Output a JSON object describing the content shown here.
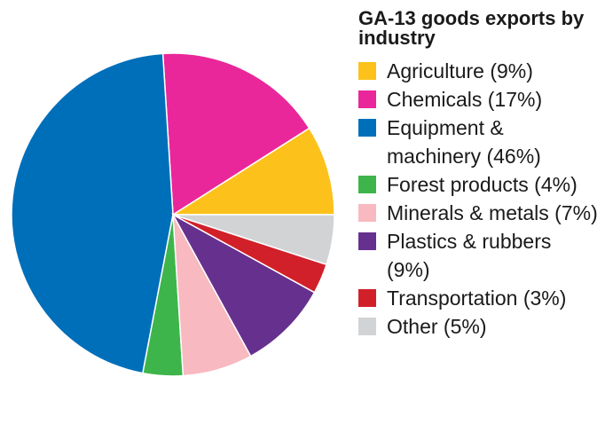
{
  "chart_data": {
    "type": "pie",
    "title": "GA-13 goods exports by industry",
    "slices": [
      {
        "label": "Agriculture (9%)",
        "value": 9,
        "color": "#FCC21B"
      },
      {
        "label": "Chemicals (17%)",
        "value": 17,
        "color": "#E9279A"
      },
      {
        "label": "Equipment & machinery (46%)",
        "value": 46,
        "color": "#006FBA"
      },
      {
        "label": "Forest products (4%)",
        "value": 4,
        "color": "#3DB54A"
      },
      {
        "label": "Minerals & metals (7%)",
        "value": 7,
        "color": "#F8B9C0"
      },
      {
        "label": "Plastics & rubbers (9%)",
        "value": 9,
        "color": "#66308F"
      },
      {
        "label": "Transportation (3%)",
        "value": 3,
        "color": "#D1202A"
      },
      {
        "label": "Other (5%)",
        "value": 5,
        "color": "#D2D3D5"
      }
    ],
    "legend_position": "right"
  }
}
